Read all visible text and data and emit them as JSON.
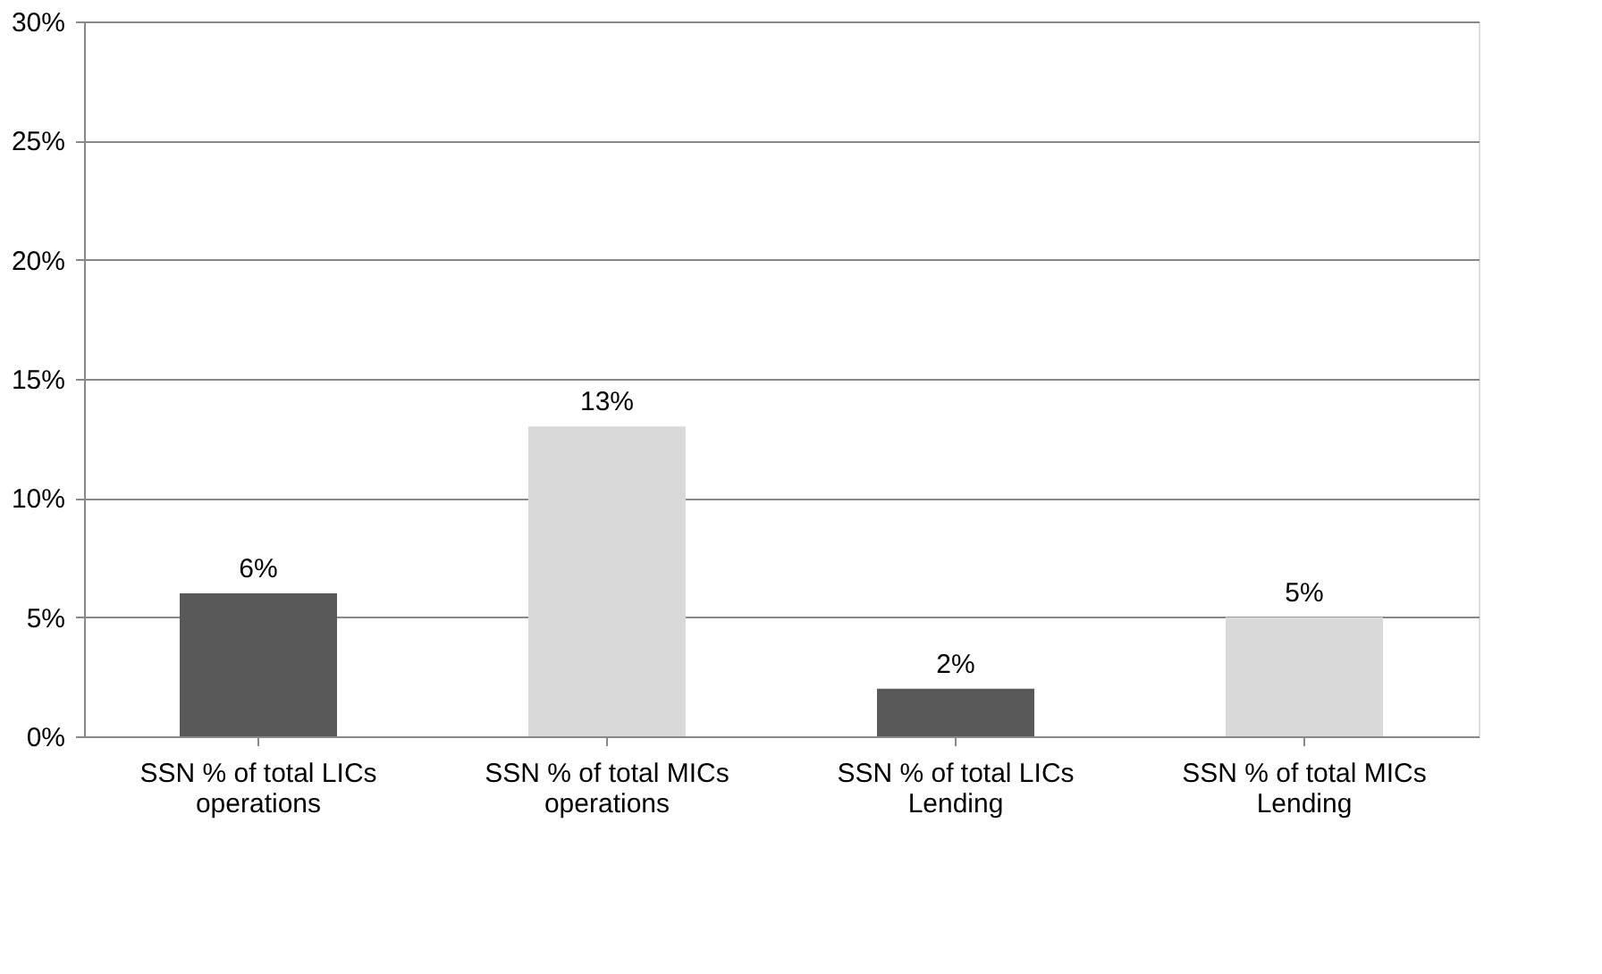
{
  "chart_data": {
    "type": "bar",
    "categories": [
      "SSN % of total LICs operations",
      "SSN % of total MICs operations",
      "SSN % of total LICs Lending",
      "SSN % of total MICs Lending"
    ],
    "values": [
      6,
      13,
      2,
      5
    ],
    "colors": [
      "#595959",
      "#d9d9d9",
      "#595959",
      "#d9d9d9"
    ],
    "value_labels": [
      "6%",
      "13%",
      "2%",
      "5%"
    ],
    "ylim": [
      0,
      30
    ],
    "yticks": [
      {
        "value": 0,
        "label": "0%"
      },
      {
        "value": 5,
        "label": "5%"
      },
      {
        "value": 10,
        "label": "10%"
      },
      {
        "value": 15,
        "label": "15%"
      },
      {
        "value": 20,
        "label": "20%"
      },
      {
        "value": 25,
        "label": "25%"
      },
      {
        "value": 30,
        "label": "30%"
      }
    ],
    "grid": "y"
  }
}
